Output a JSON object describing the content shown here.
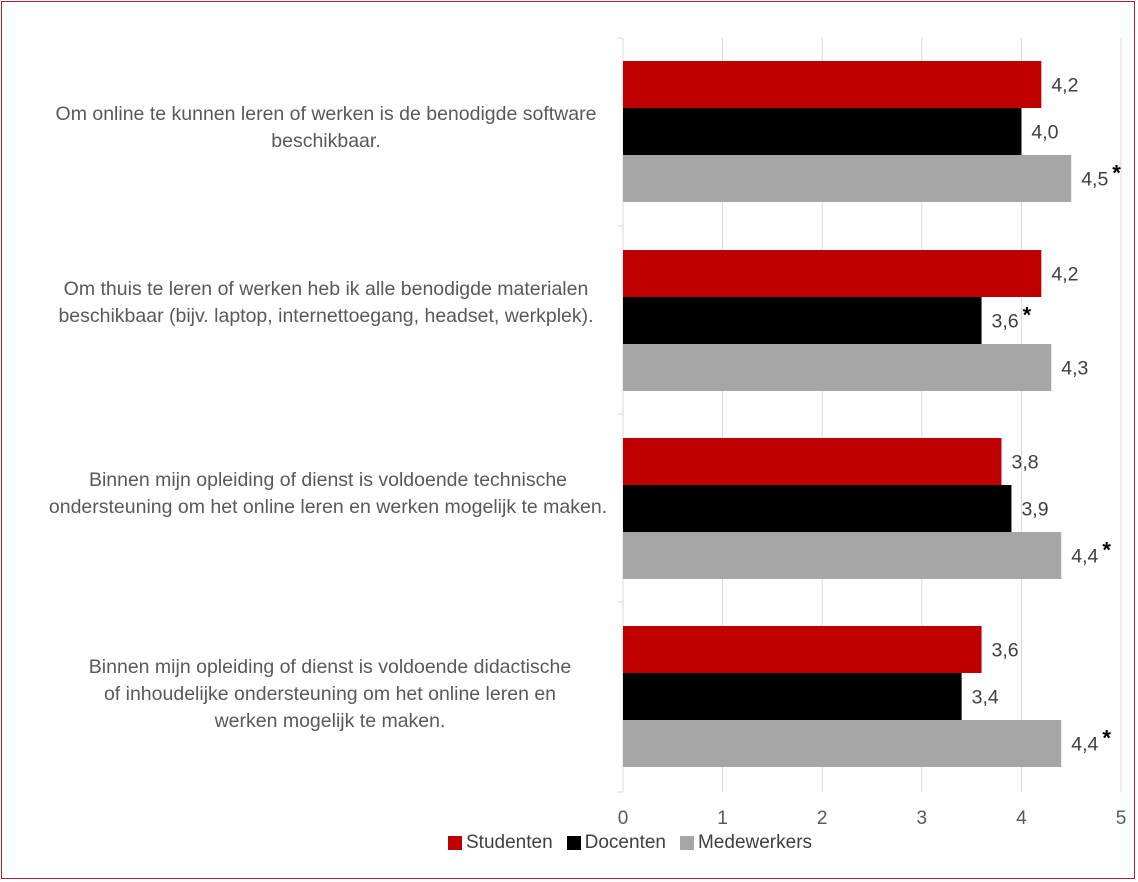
{
  "chart_data": {
    "type": "bar",
    "orientation": "horizontal",
    "categories": [
      "Om online te kunnen leren of werken is de benodigde software beschikbaar.",
      "Om thuis te leren of werken heb ik alle benodigde materialen beschikbaar (bijv. laptop, internettoegang, headset, werkplek).",
      "Binnen mijn opleiding of dienst is voldoende technische ondersteuning om het online leren en werken mogelijk te maken.",
      "Binnen mijn opleiding of dienst is voldoende didactische of inhoudelijke ondersteuning om het online leren en werken mogelijk te maken."
    ],
    "series": [
      {
        "name": "Studenten",
        "color": "#c00000",
        "values": [
          4.2,
          4.2,
          3.8,
          3.6
        ],
        "labels": [
          "4,2",
          "4,2",
          "3,8",
          "3,6"
        ]
      },
      {
        "name": "Docenten",
        "color": "#000000",
        "values": [
          4.0,
          3.6,
          3.9,
          3.4
        ],
        "labels": [
          "4,0",
          "3,6",
          "3,9",
          "3,4"
        ]
      },
      {
        "name": "Medewerkers",
        "color": "#a6a6a6",
        "values": [
          4.5,
          4.3,
          4.4,
          4.4
        ],
        "labels": [
          "4,5",
          "4,3",
          "4,4",
          "4,4"
        ]
      }
    ],
    "significance": [
      [
        false,
        false,
        true
      ],
      [
        false,
        true,
        false
      ],
      [
        false,
        false,
        true
      ],
      [
        false,
        false,
        true
      ]
    ],
    "significance_marker": "*",
    "xlim": [
      0,
      5
    ],
    "xticks": [
      "0",
      "1",
      "2",
      "3",
      "4",
      "5"
    ],
    "grid": true,
    "legend": "bottom"
  }
}
